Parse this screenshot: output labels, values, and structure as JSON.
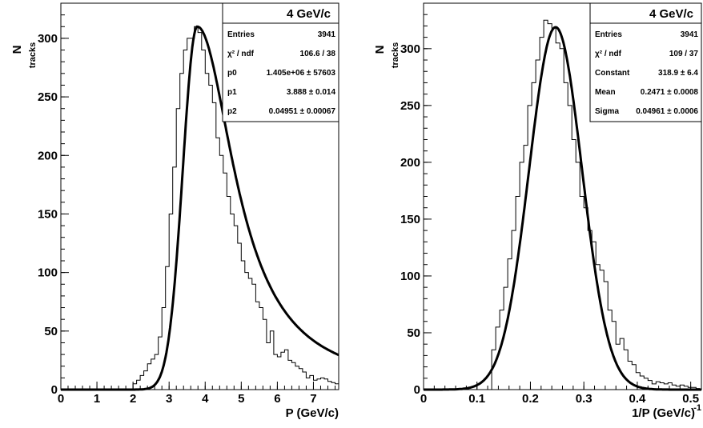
{
  "chart_data": [
    {
      "type": "histogram",
      "xlabel": "P (GeV/c)",
      "ylabel": "N",
      "ylabel_sub": "tracks",
      "xlim": [
        0,
        7.7
      ],
      "ylim": [
        0,
        330
      ],
      "x_ticks": [
        0,
        1,
        2,
        3,
        4,
        5,
        6,
        7
      ],
      "x_tick_labels": [
        "0",
        "1",
        "2",
        "3",
        "4",
        "5",
        "6",
        "7"
      ],
      "y_ticks": [
        0,
        50,
        100,
        150,
        200,
        250,
        300
      ],
      "y_tick_labels": [
        "0",
        "50",
        "100",
        "150",
        "200",
        "250",
        "300"
      ],
      "grid": false,
      "legend": "top-right",
      "stats_box": {
        "title": "4 GeV/c",
        "rows": [
          {
            "label": "Entries",
            "value": "3941"
          },
          {
            "label": "χ² / ndf",
            "value": "106.6 / 38"
          },
          {
            "label": "p0",
            "value": "1.405e+06 ± 57603"
          },
          {
            "label": "p1",
            "value": "3.888 ± 0.014"
          },
          {
            "label": "p2",
            "value": "0.04951 ± 0.00067"
          }
        ]
      },
      "bin_width": 0.1,
      "bins_x": [
        2.0,
        2.1,
        2.2,
        2.3,
        2.4,
        2.5,
        2.6,
        2.7,
        2.8,
        2.9,
        3.0,
        3.1,
        3.2,
        3.3,
        3.4,
        3.5,
        3.6,
        3.7,
        3.8,
        3.9,
        4.0,
        4.1,
        4.2,
        4.3,
        4.4,
        4.5,
        4.6,
        4.7,
        4.8,
        4.9,
        5.0,
        5.1,
        5.2,
        5.3,
        5.4,
        5.5,
        5.6,
        5.7,
        5.8,
        5.9,
        6.0,
        6.1,
        6.2,
        6.3,
        6.4,
        6.5,
        6.6,
        6.7,
        6.8,
        6.9,
        7.0,
        7.1,
        7.2,
        7.3,
        7.4,
        7.5,
        7.6
      ],
      "bins_y": [
        5,
        8,
        12,
        16,
        22,
        26,
        30,
        45,
        70,
        105,
        150,
        190,
        240,
        270,
        290,
        300,
        300,
        310,
        305,
        290,
        270,
        260,
        245,
        215,
        200,
        185,
        165,
        150,
        140,
        125,
        110,
        100,
        95,
        90,
        75,
        70,
        60,
        40,
        50,
        30,
        28,
        32,
        34,
        25,
        23,
        20,
        18,
        15,
        10,
        12,
        8,
        9,
        10,
        9,
        7,
        6,
        5
      ],
      "fit_curve": {
        "type": "landau-like",
        "peak_x": 3.78,
        "peak_y": 310,
        "sigma_left": 0.4,
        "sigma_right": 0.9
      }
    },
    {
      "type": "histogram",
      "xlabel": "1/P (GeV/c)",
      "xlabel_sup": "-1",
      "ylabel": "N",
      "ylabel_sub": "tracks",
      "xlim": [
        0,
        0.52
      ],
      "ylim": [
        0,
        340
      ],
      "x_ticks": [
        0,
        0.1,
        0.2,
        0.3,
        0.4,
        0.5
      ],
      "x_tick_labels": [
        "0",
        "0.1",
        "0.2",
        "0.3",
        "0.4",
        "0.5"
      ],
      "y_ticks": [
        0,
        50,
        100,
        150,
        200,
        250,
        300
      ],
      "y_tick_labels": [
        "0",
        "50",
        "100",
        "150",
        "200",
        "250",
        "300"
      ],
      "grid": false,
      "legend": "top-right",
      "stats_box": {
        "title": "4 GeV/c",
        "rows": [
          {
            "label": "Entries",
            "value": "3941"
          },
          {
            "label": "χ² / ndf",
            "value": "109 / 37"
          },
          {
            "label": "Constant",
            "value": "318.9 ± 6.4"
          },
          {
            "label": "Mean",
            "value": "0.2471 ± 0.0008"
          },
          {
            "label": "Sigma",
            "value": "0.04961 ± 0.0006"
          }
        ]
      },
      "bin_width": 0.0075,
      "bins_x": [
        0.1275,
        0.135,
        0.1425,
        0.15,
        0.1575,
        0.165,
        0.1725,
        0.18,
        0.1875,
        0.195,
        0.2025,
        0.21,
        0.2175,
        0.225,
        0.2325,
        0.24,
        0.2475,
        0.255,
        0.2625,
        0.27,
        0.2775,
        0.285,
        0.2925,
        0.3,
        0.3075,
        0.315,
        0.3225,
        0.33,
        0.3375,
        0.345,
        0.3525,
        0.36,
        0.3675,
        0.375,
        0.3825,
        0.39,
        0.3975,
        0.405,
        0.4125,
        0.42,
        0.4275,
        0.435,
        0.4425,
        0.45,
        0.4575,
        0.465,
        0.4725,
        0.48,
        0.4875,
        0.495,
        0.5025,
        0.51
      ],
      "bins_y": [
        35,
        55,
        70,
        90,
        115,
        140,
        170,
        200,
        215,
        250,
        270,
        290,
        310,
        325,
        322,
        318,
        305,
        300,
        270,
        250,
        220,
        200,
        170,
        160,
        140,
        130,
        110,
        105,
        95,
        70,
        60,
        40,
        45,
        35,
        25,
        22,
        15,
        12,
        10,
        8,
        5,
        7,
        6,
        5,
        6,
        4,
        3,
        4,
        3,
        2,
        2,
        1
      ],
      "fit_curve": {
        "type": "gaussian",
        "constant": 318.9,
        "mean": 0.2471,
        "sigma": 0.04961
      }
    }
  ]
}
